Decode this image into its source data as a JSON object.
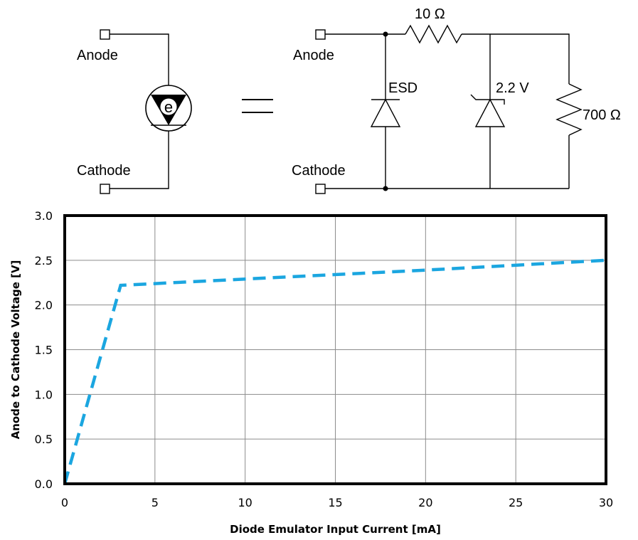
{
  "schematic": {
    "left_anode_label": "Anode",
    "left_cathode_label": "Cathode",
    "symbol_letter": "e",
    "right_anode_label": "Anode",
    "right_cathode_label": "Cathode",
    "resistor_series_label": "10 Ω",
    "esd_label": "ESD",
    "zener_label": "2.2 V",
    "resistor_shunt_label": "700 Ω"
  },
  "chart_data": {
    "type": "line",
    "xlabel": "Diode Emulator Input Current [mA]",
    "ylabel": "Anode to Cathode Voltage [V]",
    "xlim": [
      0,
      30
    ],
    "ylim": [
      0,
      3.0
    ],
    "x_ticks": [
      "0",
      "5",
      "10",
      "15",
      "20",
      "25",
      "30"
    ],
    "y_ticks": [
      "0.0",
      "0.5",
      "1.0",
      "1.5",
      "2.0",
      "2.5",
      "3.0"
    ],
    "grid": true,
    "series": [
      {
        "line_style": "dashed",
        "color": "#1ba6e0",
        "x": [
          0,
          3.1,
          10,
          20,
          30
        ],
        "y": [
          0,
          2.22,
          2.29,
          2.39,
          2.5
        ]
      }
    ]
  }
}
